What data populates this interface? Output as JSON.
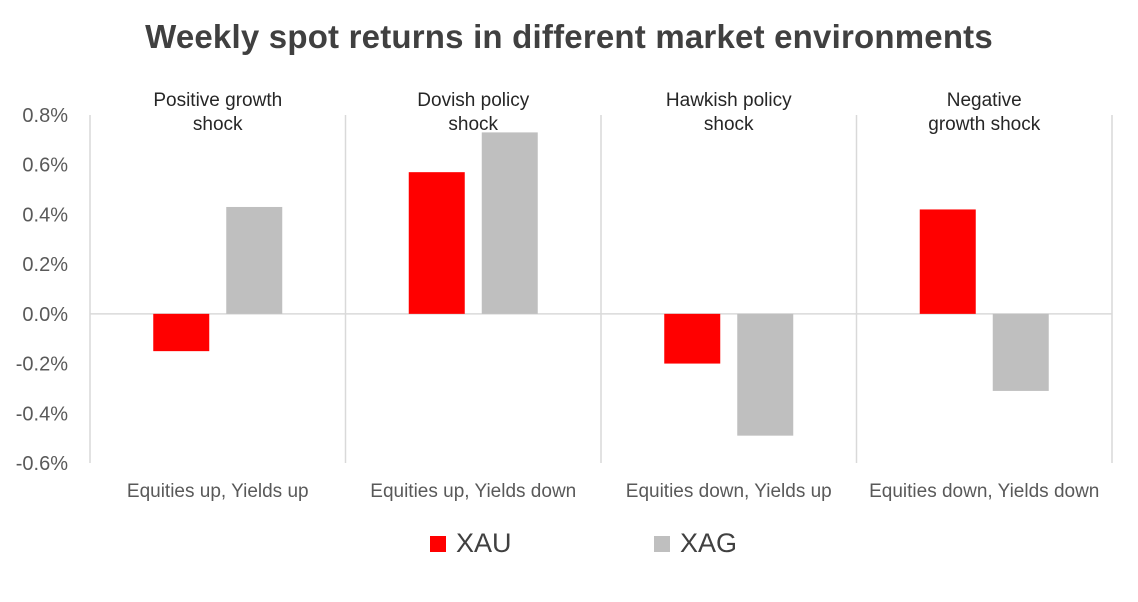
{
  "chart_data": {
    "type": "bar",
    "title": "Weekly spot returns in different market environments",
    "categories": [
      "Equities up, Yields up",
      "Equities up, Yields down",
      "Equities down, Yields up",
      "Equities down, Yields down"
    ],
    "panel_labels": [
      "Positive growth shock",
      "Dovish policy shock",
      "Hawkish policy shock",
      "Negative growth shock"
    ],
    "series": [
      {
        "name": "XAU",
        "color": "#ff0000",
        "values": [
          -0.15,
          0.57,
          -0.2,
          0.42
        ]
      },
      {
        "name": "XAG",
        "color": "#bfbfbf",
        "values": [
          0.43,
          0.73,
          -0.49,
          -0.31
        ]
      }
    ],
    "y_unit": "%",
    "ylim": [
      -0.6,
      0.8
    ],
    "yticks": [
      0.8,
      0.6,
      0.4,
      0.2,
      0.0,
      -0.2,
      -0.4,
      -0.6
    ],
    "ytick_labels": [
      "0.8%",
      "0.6%",
      "0.4%",
      "0.2%",
      "0.0%",
      "-0.2%",
      "-0.4%",
      "-0.6%"
    ],
    "grid": false,
    "legend_position": "bottom"
  }
}
